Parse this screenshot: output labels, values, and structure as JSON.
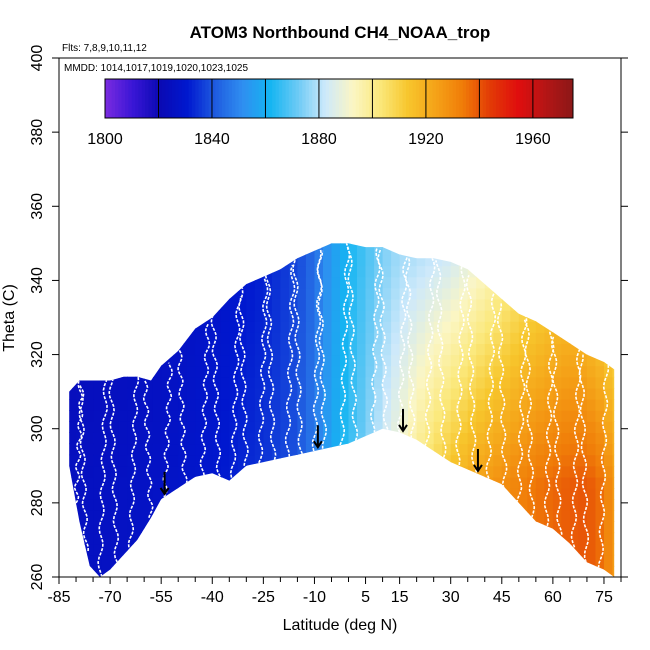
{
  "chart_data": {
    "type": "heatmap",
    "title": "ATOM3 Northbound CH4_NOAA_trop",
    "flights_label": "Flts: 7,8,9,10,11,12",
    "mmdd_label": "MMDD: 1014,1017,1019,1020,1023,1025",
    "xlabel": "Latitude (deg N)",
    "ylabel": "Theta (C)",
    "xlim": [
      -85,
      80
    ],
    "ylim": [
      260,
      400
    ],
    "x_ticks": [
      -85,
      -70,
      -55,
      -40,
      -25,
      -10,
      5,
      15,
      30,
      45,
      60,
      75
    ],
    "y_ticks": [
      260,
      280,
      300,
      320,
      340,
      360,
      380,
      400
    ],
    "colorbar": {
      "range": [
        1800,
        1975
      ],
      "ticks": [
        1800,
        1840,
        1880,
        1920,
        1960
      ],
      "colors": [
        "#7b2be0",
        "#3a16d6",
        "#0a0ab4",
        "#0018cf",
        "#1f5ce0",
        "#2f8ef0",
        "#14b5f2",
        "#6ccaf5",
        "#cde9fb",
        "#fbf6c4",
        "#fbe87a",
        "#f7c62d",
        "#f5a318",
        "#f07c08",
        "#e23a06",
        "#e00e0e",
        "#b51515",
        "#8b1818"
      ]
    },
    "envelope": {
      "lat": [
        -82,
        -79,
        -76,
        -73,
        -70,
        -66,
        -62,
        -58,
        -55,
        -50,
        -45,
        -40,
        -35,
        -30,
        -25,
        -20,
        -15,
        -10,
        -5,
        0,
        5,
        10,
        15,
        20,
        25,
        30,
        35,
        40,
        45,
        50,
        55,
        60,
        65,
        70,
        75,
        78
      ],
      "theta_top": [
        310,
        313,
        313,
        313,
        313,
        314,
        314,
        313,
        317,
        321,
        327,
        330,
        335,
        339,
        341,
        343,
        346,
        348,
        350,
        350,
        349,
        349,
        347,
        346,
        346,
        345,
        343,
        339,
        335,
        331,
        329,
        326,
        323,
        320,
        318,
        316
      ],
      "theta_bottom": [
        290,
        275,
        263,
        260,
        262,
        266,
        270,
        276,
        281,
        284,
        287,
        288,
        286,
        290,
        291,
        292,
        293,
        294,
        295,
        296,
        298,
        300,
        299,
        297,
        294,
        291,
        289,
        287,
        285,
        280,
        275,
        273,
        269,
        264,
        262,
        260
      ]
    },
    "field": {
      "lat": [
        -82,
        -70,
        -55,
        -40,
        -25,
        -15,
        -10,
        -5,
        0,
        5,
        10,
        15,
        20,
        25,
        30,
        35,
        40,
        45,
        50,
        55,
        60,
        65,
        70,
        75,
        78
      ],
      "ch4_low": [
        1825,
        1826,
        1827,
        1830,
        1835,
        1840,
        1848,
        1858,
        1866,
        1874,
        1885,
        1893,
        1902,
        1910,
        1916,
        1922,
        1926,
        1929,
        1932,
        1935,
        1937,
        1939,
        1940,
        1935,
        1925
      ],
      "ch4_high": [
        1822,
        1823,
        1825,
        1828,
        1832,
        1838,
        1845,
        1855,
        1862,
        1868,
        1874,
        1878,
        1880,
        1882,
        1884,
        1888,
        1892,
        1897,
        1902,
        1905,
        1908,
        1910,
        1906,
        1902,
        1898
      ]
    },
    "profiles_lat": [
      -80,
      -77,
      -73,
      -68,
      -64,
      -58,
      -54,
      -48,
      -43,
      -38,
      -34,
      -30,
      -26,
      -22,
      -18,
      -14,
      -10,
      -7,
      -2,
      2,
      7,
      11,
      15,
      19,
      23,
      28,
      32,
      37,
      41,
      46,
      50,
      54,
      58,
      62,
      66,
      70,
      74
    ],
    "arrows_lat": [
      -54,
      -9,
      16,
      38
    ]
  }
}
